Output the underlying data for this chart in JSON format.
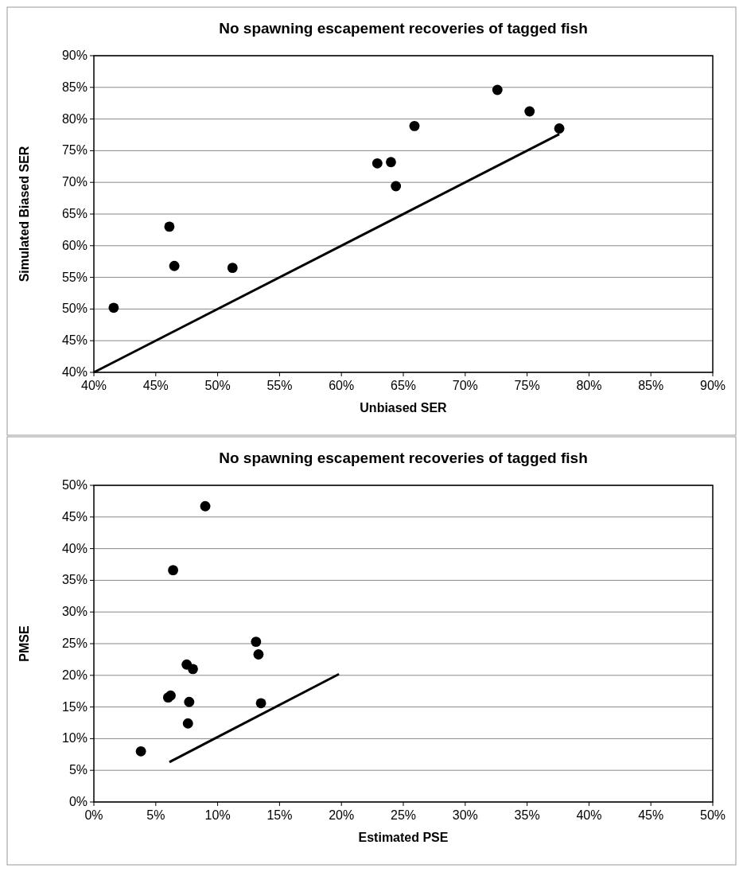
{
  "chart_data": [
    {
      "type": "scatter",
      "title": "No spawning escapement recoveries of tagged fish",
      "xlabel": "Unbiased SER",
      "ylabel": "Simulated Biased SER",
      "grid": "y",
      "xlim": [
        40,
        90
      ],
      "xticks": [
        {
          "value": 40,
          "label": "40%"
        },
        {
          "value": 45,
          "label": "45%"
        },
        {
          "value": 50,
          "label": "50%"
        },
        {
          "value": 55,
          "label": "55%"
        },
        {
          "value": 60,
          "label": "60%"
        },
        {
          "value": 65,
          "label": "65%"
        },
        {
          "value": 70,
          "label": "70%"
        },
        {
          "value": 75,
          "label": "75%"
        },
        {
          "value": 80,
          "label": "80%"
        },
        {
          "value": 85,
          "label": "85%"
        },
        {
          "value": 90,
          "label": "90%"
        }
      ],
      "ylim": [
        40,
        90
      ],
      "yticks": [
        {
          "value": 40,
          "label": "40%"
        },
        {
          "value": 45,
          "label": "45%"
        },
        {
          "value": 50,
          "label": "50%"
        },
        {
          "value": 55,
          "label": "55%"
        },
        {
          "value": 60,
          "label": "60%"
        },
        {
          "value": 65,
          "label": "65%"
        },
        {
          "value": 70,
          "label": "70%"
        },
        {
          "value": 75,
          "label": "75%"
        },
        {
          "value": 80,
          "label": "80%"
        },
        {
          "value": 85,
          "label": "85%"
        },
        {
          "value": 90,
          "label": "90%"
        }
      ],
      "series": [
        {
          "marker": "circle",
          "color": "#000000",
          "x": [
            41.6,
            46.1,
            46.5,
            51.2,
            62.9,
            64.0,
            64.4,
            65.9,
            72.6,
            75.2,
            77.6
          ],
          "values": [
            50.2,
            63.0,
            56.8,
            56.5,
            73.0,
            73.2,
            69.4,
            78.9,
            84.6,
            81.2,
            78.5
          ]
        },
        {
          "type": "line",
          "color": "#000000",
          "x": [
            40,
            77.6
          ],
          "values": [
            40,
            77.6
          ]
        }
      ]
    },
    {
      "type": "scatter",
      "title": "No spawning escapement recoveries of tagged fish",
      "xlabel": "Estimated PSE",
      "ylabel": "PMSE",
      "grid": "y",
      "xlim": [
        0,
        50
      ],
      "xticks": [
        {
          "value": 0,
          "label": "0%"
        },
        {
          "value": 5,
          "label": "5%"
        },
        {
          "value": 10,
          "label": "10%"
        },
        {
          "value": 15,
          "label": "15%"
        },
        {
          "value": 20,
          "label": "20%"
        },
        {
          "value": 25,
          "label": "25%"
        },
        {
          "value": 30,
          "label": "30%"
        },
        {
          "value": 35,
          "label": "35%"
        },
        {
          "value": 40,
          "label": "40%"
        },
        {
          "value": 45,
          "label": "45%"
        },
        {
          "value": 50,
          "label": "50%"
        }
      ],
      "ylim": [
        0,
        50
      ],
      "yticks": [
        {
          "value": 0,
          "label": "0%"
        },
        {
          "value": 5,
          "label": "5%"
        },
        {
          "value": 10,
          "label": "10%"
        },
        {
          "value": 15,
          "label": "15%"
        },
        {
          "value": 20,
          "label": "20%"
        },
        {
          "value": 25,
          "label": "25%"
        },
        {
          "value": 30,
          "label": "30%"
        },
        {
          "value": 35,
          "label": "35%"
        },
        {
          "value": 40,
          "label": "40%"
        },
        {
          "value": 45,
          "label": "45%"
        },
        {
          "value": 50,
          "label": "50%"
        }
      ],
      "series": [
        {
          "marker": "circle",
          "color": "#000000",
          "x": [
            3.8,
            6.0,
            6.2,
            6.4,
            7.5,
            7.6,
            7.7,
            8.0,
            9.0,
            13.1,
            13.3,
            13.5
          ],
          "values": [
            8.0,
            16.5,
            16.8,
            36.6,
            21.7,
            12.4,
            15.8,
            21.0,
            46.7,
            25.3,
            23.3,
            15.6
          ]
        },
        {
          "type": "line",
          "color": "#000000",
          "x": [
            6.1,
            19.8
          ],
          "values": [
            6.3,
            20.2
          ]
        }
      ]
    }
  ]
}
